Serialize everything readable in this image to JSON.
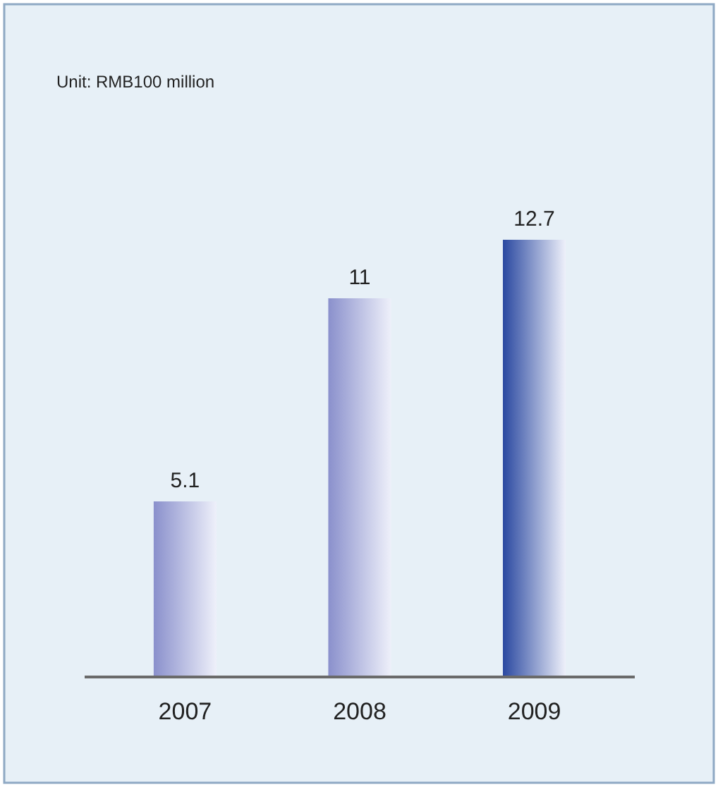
{
  "chart_data": {
    "type": "bar",
    "annotations": [
      "Unit: RMB100 million"
    ],
    "categories": [
      "2007",
      "2008",
      "2009"
    ],
    "values": [
      5.1,
      11,
      12.7
    ],
    "colors": [
      "#8a90cc",
      "#8a90cc",
      "#2a48a0"
    ],
    "data_labels": true
  }
}
